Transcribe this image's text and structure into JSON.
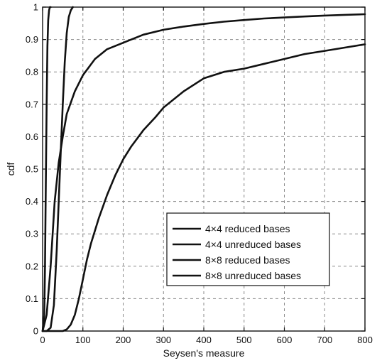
{
  "chart_data": {
    "type": "line",
    "title": "",
    "xlabel": "Seysen's measure",
    "ylabel": "cdf",
    "xlim": [
      0,
      800
    ],
    "ylim": [
      0,
      1
    ],
    "xticks": [
      0,
      100,
      200,
      300,
      400,
      500,
      600,
      700,
      800
    ],
    "yticks": [
      0,
      0.1,
      0.2,
      0.3,
      0.4,
      0.5,
      0.6,
      0.7,
      0.8,
      0.9,
      1
    ],
    "xtick_labels": [
      "0",
      "100",
      "200",
      "300",
      "400",
      "500",
      "600",
      "700",
      "800"
    ],
    "ytick_labels": [
      "0",
      "0.1",
      "0.2",
      "0.3",
      "0.4",
      "0.5",
      "0.6",
      "0.7",
      "0.8",
      "0.9",
      "1"
    ],
    "grid": true,
    "legend_position": "lower-right",
    "series": [
      {
        "name": "4×4 reduced bases",
        "x": [
          0,
          4,
          6,
          8,
          10,
          12,
          14,
          16,
          18,
          20
        ],
        "y": [
          0,
          0.05,
          0.2,
          0.45,
          0.7,
          0.88,
          0.96,
          0.99,
          1,
          1
        ]
      },
      {
        "name": "4×4 unreduced bases",
        "x": [
          0,
          10,
          20,
          30,
          40,
          50,
          60,
          80,
          100,
          130,
          160,
          200,
          250,
          300,
          350,
          400,
          450,
          500,
          550,
          600,
          650,
          700,
          750,
          800
        ],
        "y": [
          0,
          0.05,
          0.2,
          0.4,
          0.52,
          0.6,
          0.67,
          0.74,
          0.79,
          0.84,
          0.87,
          0.89,
          0.915,
          0.93,
          0.94,
          0.948,
          0.955,
          0.96,
          0.965,
          0.968,
          0.971,
          0.974,
          0.976,
          0.978
        ]
      },
      {
        "name": "8×8 reduced bases",
        "x": [
          0,
          10,
          20,
          28,
          35,
          40,
          45,
          50,
          55,
          60,
          65,
          70,
          75
        ],
        "y": [
          0,
          0,
          0.01,
          0.08,
          0.25,
          0.4,
          0.55,
          0.7,
          0.83,
          0.92,
          0.97,
          0.99,
          1
        ]
      },
      {
        "name": "8×8 unreduced bases",
        "x": [
          0,
          30,
          50,
          60,
          70,
          80,
          90,
          100,
          110,
          120,
          140,
          160,
          180,
          200,
          220,
          250,
          280,
          300,
          350,
          400,
          450,
          500,
          550,
          600,
          650,
          700,
          750,
          800
        ],
        "y": [
          0,
          0,
          0,
          0.005,
          0.02,
          0.05,
          0.1,
          0.16,
          0.22,
          0.27,
          0.35,
          0.42,
          0.48,
          0.53,
          0.57,
          0.62,
          0.66,
          0.69,
          0.74,
          0.78,
          0.8,
          0.81,
          0.825,
          0.84,
          0.855,
          0.865,
          0.875,
          0.885
        ]
      }
    ]
  }
}
